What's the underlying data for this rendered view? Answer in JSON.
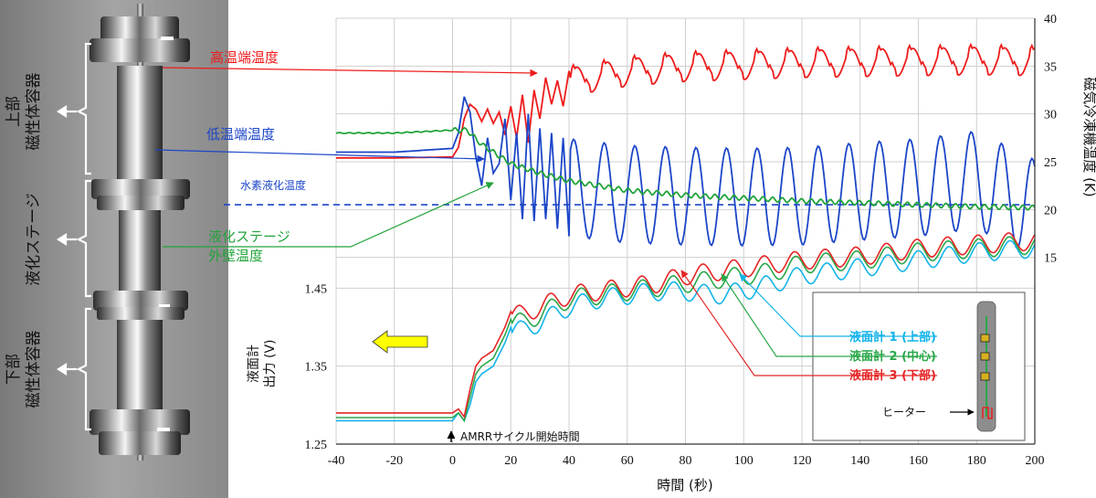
{
  "photo": {
    "upper_label": [
      "上部",
      "磁性体容器"
    ],
    "middle_label": "液化ステージ",
    "lower_label": [
      "下部",
      "磁性体容器"
    ]
  },
  "callouts": {
    "hot": "高温端温度",
    "cold": "低温端温度",
    "h2_liquefaction": "水素液化温度",
    "stage_wall": [
      "液化ステージ",
      "外壁温度"
    ],
    "amrr_start": "AMRRサイクル開始時間"
  },
  "inset": {
    "level1": "液面計 1 (上部)",
    "level2": "液面計 2 (中心)",
    "level3": "液面計 3 (下部)",
    "heater": "ヒーター"
  },
  "colors": {
    "hot": "#ee1c1c",
    "cold": "#1c46c8",
    "wall": "#22a33a",
    "level1": "#14b4e8",
    "level2": "#2aa84a",
    "level3": "#e52626",
    "arrow": "#ffff00"
  },
  "chart_data": [
    {
      "type": "line",
      "panel": "temperature",
      "xlabel": "時間 (秒)",
      "ylabel": "磁気冷凍機温度 (K)",
      "xlim": [
        -40,
        200
      ],
      "ylim": [
        10,
        40
      ],
      "yticks": [
        15,
        20,
        25,
        30,
        35,
        40
      ],
      "reference_line": {
        "label": "水素液化温度",
        "y": 20.5
      },
      "series": [
        {
          "key": "hot",
          "name": "高温端温度",
          "x": [
            -40,
            -20,
            0,
            2,
            4,
            6,
            8,
            10,
            12,
            14,
            16,
            18,
            20,
            22,
            24,
            26,
            28,
            30,
            32,
            34,
            36,
            38,
            40,
            60,
            80,
            100,
            120,
            140,
            160,
            180,
            200
          ],
          "y": [
            25.4,
            25.4,
            25.5,
            26.5,
            29.5,
            31.0,
            30.5,
            29.2,
            30.5,
            29.0,
            30.2,
            27.8,
            30.8,
            27.5,
            32.0,
            27.0,
            32.5,
            29.5,
            33.8,
            31.0,
            33.5,
            30.8,
            34.5,
            35.5,
            36.0,
            36.2,
            36.4,
            36.5,
            36.6,
            36.7,
            36.6
          ],
          "osc_amp": 2.6,
          "osc_period": 10.5
        },
        {
          "key": "cold",
          "name": "低温端温度",
          "x": [
            -40,
            -20,
            0,
            2,
            4,
            6,
            8,
            10,
            12,
            14,
            16,
            18,
            20,
            22,
            24,
            26,
            28,
            30,
            32,
            34,
            36,
            38,
            40,
            60,
            80,
            100,
            120,
            140,
            160,
            180,
            200
          ],
          "y": [
            26.0,
            26.0,
            26.4,
            28.0,
            31.8,
            30.2,
            25.5,
            22.5,
            27.5,
            23.8,
            24.8,
            29.5,
            21.0,
            28.0,
            19.0,
            30.0,
            18.8,
            28.5,
            19.0,
            28.0,
            18.0,
            27.5,
            17.2,
            16.5,
            16.3,
            16.2,
            16.3,
            16.8,
            17.2,
            18.0,
            15.0
          ],
          "osc_amp": 6.0,
          "osc_period": 10.5
        },
        {
          "key": "wall",
          "name": "液化ステージ 外壁温度",
          "x": [
            -40,
            -20,
            0,
            5,
            10,
            15,
            20,
            30,
            40,
            60,
            80,
            100,
            120,
            140,
            160,
            180,
            200
          ],
          "y": [
            28.0,
            28.0,
            28.3,
            28.3,
            26.8,
            25.8,
            24.8,
            23.8,
            23.0,
            22.0,
            21.5,
            21.2,
            20.9,
            20.7,
            20.5,
            20.3,
            20.2
          ]
        }
      ]
    },
    {
      "type": "line",
      "panel": "level_gauge",
      "xlabel": "時間 (秒)",
      "ylabel": "液面計 出力 (V)",
      "xlim": [
        -40,
        200
      ],
      "xticks": [
        -40,
        -20,
        0,
        20,
        40,
        60,
        80,
        100,
        120,
        140,
        160,
        180,
        200
      ],
      "ylim": [
        1.25,
        1.55
      ],
      "yticks": [
        1.25,
        1.35,
        1.45
      ],
      "annotation": {
        "label": "AMRRサイクル開始時間",
        "x": 0
      },
      "series": [
        {
          "key": "level1",
          "name": "液面計 1 (上部)",
          "x": [
            -40,
            -20,
            0,
            2,
            4,
            6,
            8,
            10,
            14,
            18,
            20,
            24,
            30,
            40,
            50,
            60,
            70,
            80,
            90,
            100,
            110,
            120,
            140,
            160,
            180,
            200
          ],
          "y": [
            1.28,
            1.28,
            1.28,
            1.29,
            1.28,
            1.3,
            1.33,
            1.34,
            1.35,
            1.38,
            1.4,
            1.4,
            1.41,
            1.43,
            1.44,
            1.445,
            1.45,
            1.45,
            1.445,
            1.45,
            1.46,
            1.47,
            1.48,
            1.49,
            1.5,
            1.505
          ]
        },
        {
          "key": "level2",
          "name": "液面計 2 (中心)",
          "x": [
            -40,
            -20,
            0,
            2,
            4,
            6,
            8,
            10,
            14,
            18,
            20,
            24,
            30,
            40,
            50,
            60,
            70,
            80,
            90,
            100,
            110,
            120,
            140,
            160,
            180,
            200
          ],
          "y": [
            1.284,
            1.284,
            1.284,
            1.29,
            1.28,
            1.31,
            1.34,
            1.35,
            1.36,
            1.39,
            1.41,
            1.41,
            1.42,
            1.44,
            1.445,
            1.45,
            1.455,
            1.46,
            1.465,
            1.47,
            1.475,
            1.485,
            1.49,
            1.5,
            1.505,
            1.51
          ]
        },
        {
          "key": "level3",
          "name": "液面計 3 (下部)",
          "x": [
            -40,
            -20,
            0,
            2,
            4,
            6,
            8,
            10,
            14,
            18,
            20,
            24,
            30,
            40,
            50,
            60,
            70,
            80,
            90,
            100,
            110,
            120,
            140,
            160,
            180,
            200
          ],
          "y": [
            1.29,
            1.29,
            1.29,
            1.295,
            1.285,
            1.32,
            1.35,
            1.36,
            1.37,
            1.4,
            1.42,
            1.42,
            1.43,
            1.445,
            1.45,
            1.455,
            1.46,
            1.47,
            1.475,
            1.48,
            1.485,
            1.49,
            1.495,
            1.505,
            1.51,
            1.515
          ]
        }
      ]
    }
  ]
}
